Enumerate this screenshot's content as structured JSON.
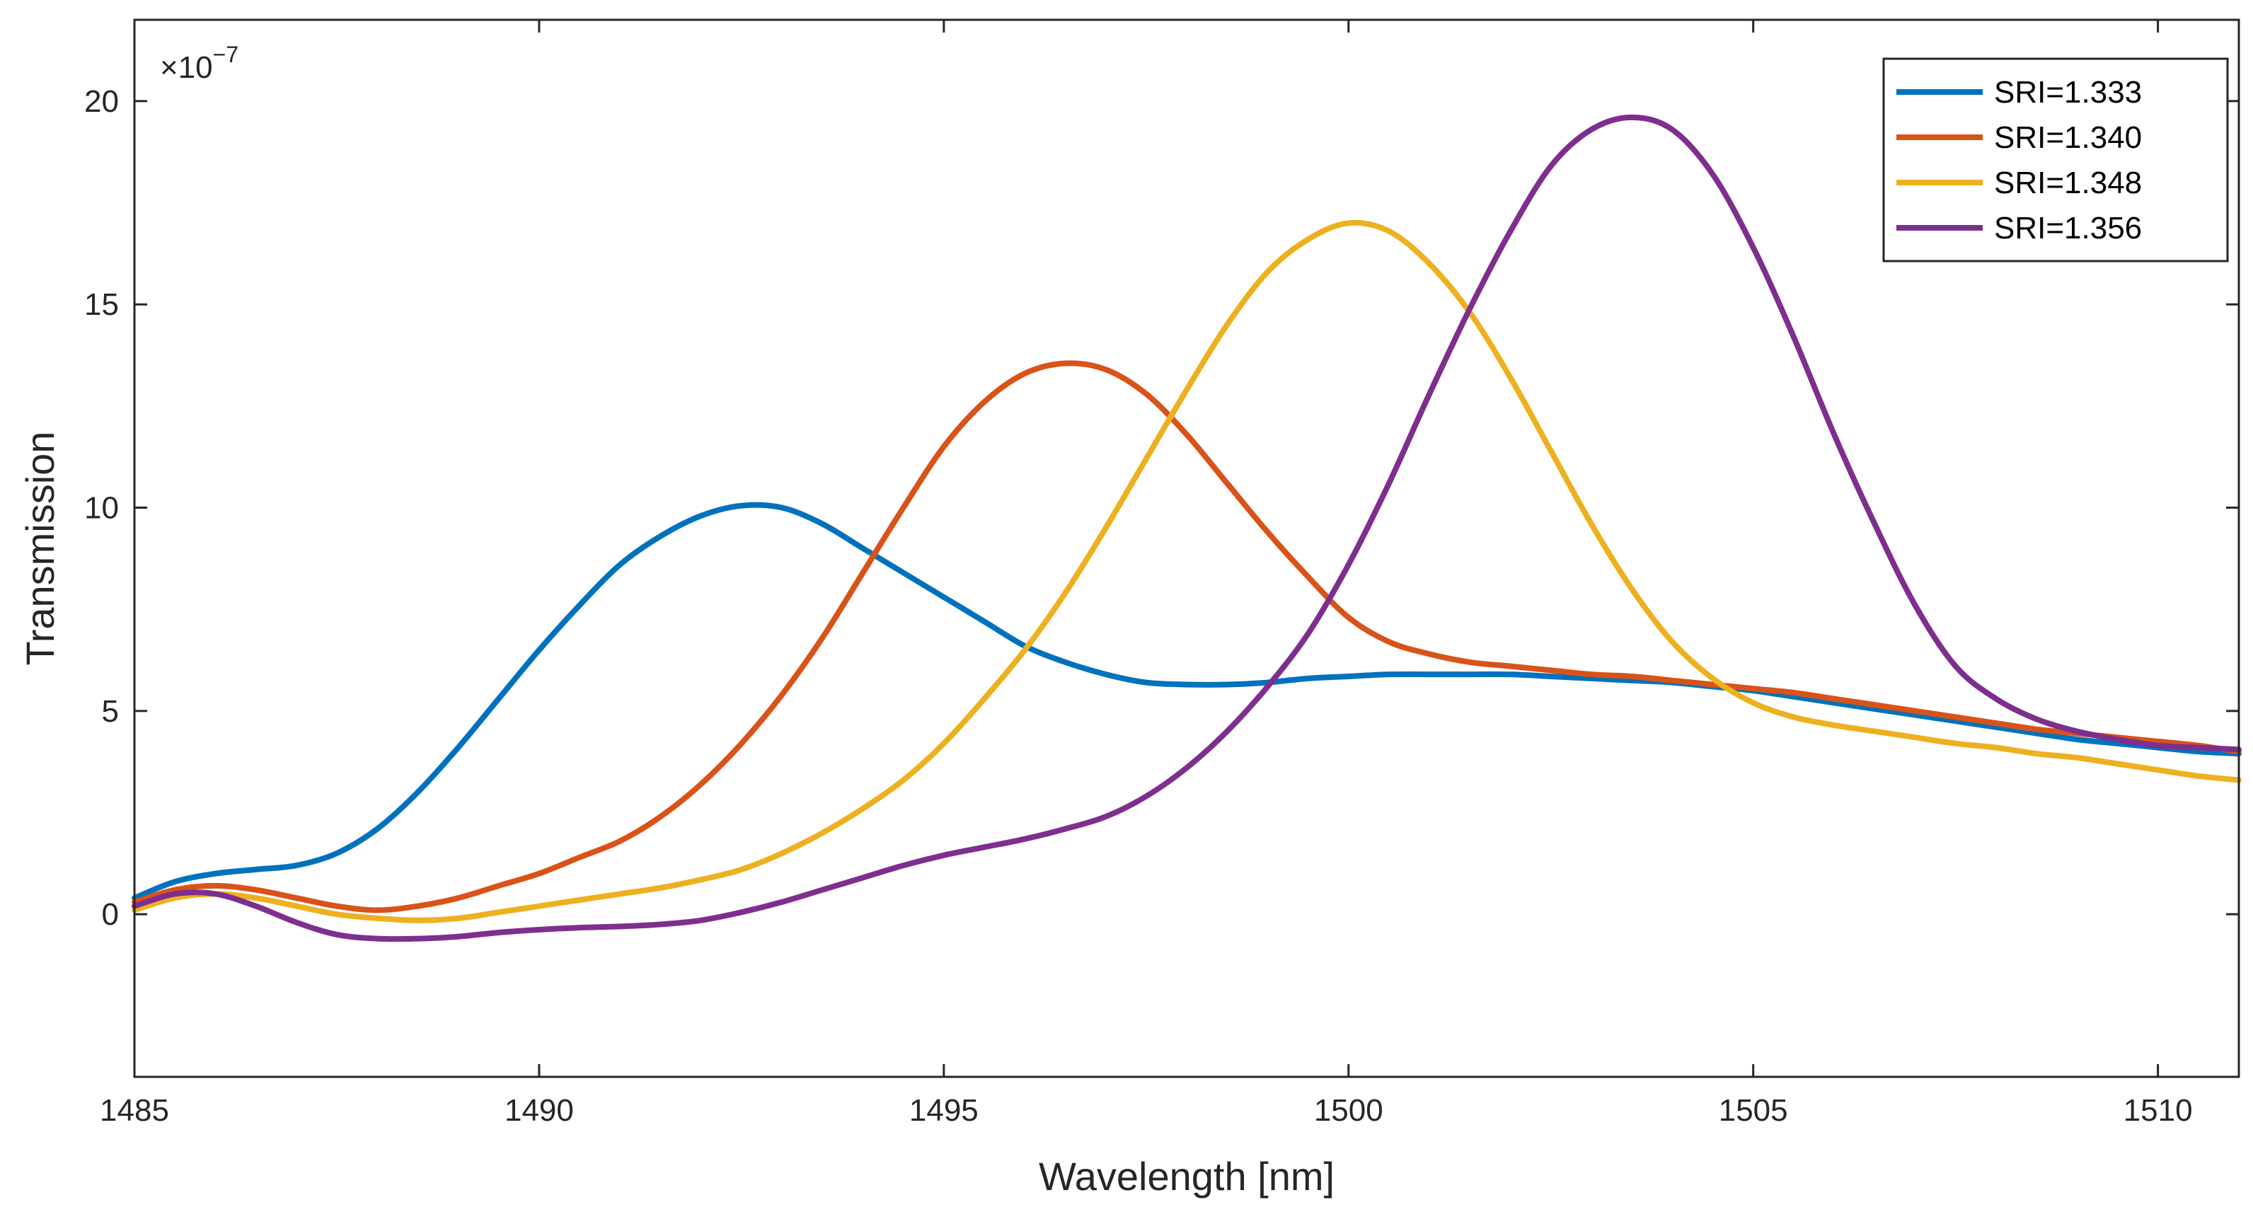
{
  "chart_data": {
    "type": "line",
    "xlabel": "Wavelength [nm]",
    "ylabel": "Transmission",
    "exponent": {
      "base": "×10",
      "power": "−7"
    },
    "xlim": [
      1485,
      1511
    ],
    "ylim": [
      -4,
      22
    ],
    "xticks": [
      1485,
      1490,
      1495,
      1500,
      1505,
      1510
    ],
    "yticks": [
      0,
      5,
      10,
      15,
      20
    ],
    "legend_position": "top-right",
    "colors": {
      "axis": "#262626",
      "background": "#ffffff"
    },
    "series": [
      {
        "name": "SRI=1.333",
        "color": "#0072BD",
        "x": [
          1485,
          1485.5,
          1486,
          1486.5,
          1487,
          1487.5,
          1488,
          1488.5,
          1489,
          1489.5,
          1490,
          1490.5,
          1491,
          1491.5,
          1492,
          1492.5,
          1493,
          1493.5,
          1494,
          1494.5,
          1495,
          1495.5,
          1496,
          1496.5,
          1497,
          1497.5,
          1498,
          1498.5,
          1499,
          1499.5,
          1500,
          1500.5,
          1501,
          1501.5,
          1502,
          1502.5,
          1503,
          1503.5,
          1504,
          1504.5,
          1505,
          1505.5,
          1506,
          1506.5,
          1507,
          1507.5,
          1508,
          1508.5,
          1509,
          1509.5,
          1510,
          1510.5,
          1511
        ],
        "y": [
          0.4,
          0.8,
          1.0,
          1.1,
          1.2,
          1.5,
          2.1,
          3.0,
          4.1,
          5.3,
          6.5,
          7.6,
          8.6,
          9.3,
          9.8,
          10.05,
          10.0,
          9.6,
          9.0,
          8.4,
          7.8,
          7.2,
          6.6,
          6.2,
          5.9,
          5.7,
          5.65,
          5.65,
          5.7,
          5.8,
          5.85,
          5.9,
          5.9,
          5.9,
          5.9,
          5.85,
          5.8,
          5.75,
          5.7,
          5.6,
          5.5,
          5.35,
          5.2,
          5.05,
          4.9,
          4.75,
          4.6,
          4.45,
          4.3,
          4.2,
          4.1,
          4.0,
          3.95
        ]
      },
      {
        "name": "SRI=1.340",
        "color": "#D95319",
        "x": [
          1485,
          1485.5,
          1486,
          1486.5,
          1487,
          1487.5,
          1488,
          1488.5,
          1489,
          1489.5,
          1490,
          1490.5,
          1491,
          1491.5,
          1492,
          1492.5,
          1493,
          1493.5,
          1494,
          1494.5,
          1495,
          1495.5,
          1496,
          1496.5,
          1497,
          1497.5,
          1498,
          1498.5,
          1499,
          1499.5,
          1500,
          1500.5,
          1501,
          1501.5,
          1502,
          1502.5,
          1503,
          1503.5,
          1504,
          1504.5,
          1505,
          1505.5,
          1506,
          1506.5,
          1507,
          1507.5,
          1508,
          1508.5,
          1509,
          1509.5,
          1510,
          1510.5,
          1511
        ],
        "y": [
          0.3,
          0.6,
          0.7,
          0.6,
          0.4,
          0.2,
          0.1,
          0.2,
          0.4,
          0.7,
          1.0,
          1.4,
          1.8,
          2.4,
          3.2,
          4.2,
          5.4,
          6.8,
          8.4,
          10.0,
          11.5,
          12.6,
          13.3,
          13.55,
          13.4,
          12.8,
          11.8,
          10.6,
          9.4,
          8.3,
          7.3,
          6.7,
          6.4,
          6.2,
          6.1,
          6.0,
          5.9,
          5.85,
          5.75,
          5.65,
          5.55,
          5.45,
          5.3,
          5.15,
          5.0,
          4.85,
          4.7,
          4.55,
          4.45,
          4.35,
          4.25,
          4.15,
          4.0
        ]
      },
      {
        "name": "SRI=1.348",
        "color": "#EDB120",
        "x": [
          1485,
          1485.5,
          1486,
          1486.5,
          1487,
          1487.5,
          1488,
          1488.5,
          1489,
          1489.5,
          1490,
          1490.5,
          1491,
          1491.5,
          1492,
          1492.5,
          1493,
          1493.5,
          1494,
          1494.5,
          1495,
          1495.5,
          1496,
          1496.5,
          1497,
          1497.5,
          1498,
          1498.5,
          1499,
          1499.5,
          1500,
          1500.5,
          1501,
          1501.5,
          1502,
          1502.5,
          1503,
          1503.5,
          1504,
          1504.5,
          1505,
          1505.5,
          1506,
          1506.5,
          1507,
          1507.5,
          1508,
          1508.5,
          1509,
          1509.5,
          1510,
          1510.5,
          1511
        ],
        "y": [
          0.1,
          0.4,
          0.5,
          0.4,
          0.2,
          0.0,
          -0.1,
          -0.15,
          -0.1,
          0.05,
          0.2,
          0.35,
          0.5,
          0.65,
          0.85,
          1.1,
          1.5,
          2.0,
          2.6,
          3.3,
          4.2,
          5.3,
          6.5,
          7.9,
          9.5,
          11.2,
          12.9,
          14.5,
          15.8,
          16.6,
          17.0,
          16.8,
          16.0,
          14.8,
          13.2,
          11.4,
          9.6,
          8.0,
          6.7,
          5.8,
          5.2,
          4.85,
          4.65,
          4.5,
          4.35,
          4.2,
          4.1,
          3.95,
          3.85,
          3.7,
          3.55,
          3.4,
          3.3
        ]
      },
      {
        "name": "SRI=1.356",
        "color": "#7E2F8E",
        "x": [
          1485,
          1485.5,
          1486,
          1486.5,
          1487,
          1487.5,
          1488,
          1488.5,
          1489,
          1489.5,
          1490,
          1490.5,
          1491,
          1491.5,
          1492,
          1492.5,
          1493,
          1493.5,
          1494,
          1494.5,
          1495,
          1495.5,
          1496,
          1496.5,
          1497,
          1497.5,
          1498,
          1498.5,
          1499,
          1499.5,
          1500,
          1500.5,
          1501,
          1501.5,
          1502,
          1502.5,
          1503,
          1503.5,
          1504,
          1504.5,
          1505,
          1505.5,
          1506,
          1506.5,
          1507,
          1507.5,
          1508,
          1508.5,
          1509,
          1509.5,
          1510,
          1510.5,
          1511
        ],
        "y": [
          0.2,
          0.5,
          0.5,
          0.2,
          -0.2,
          -0.5,
          -0.6,
          -0.6,
          -0.55,
          -0.45,
          -0.38,
          -0.33,
          -0.3,
          -0.25,
          -0.15,
          0.05,
          0.3,
          0.6,
          0.9,
          1.2,
          1.45,
          1.65,
          1.85,
          2.1,
          2.4,
          2.9,
          3.6,
          4.5,
          5.6,
          6.9,
          8.6,
          10.6,
          12.8,
          14.9,
          16.8,
          18.4,
          19.3,
          19.6,
          19.3,
          18.2,
          16.4,
          14.2,
          11.8,
          9.6,
          7.6,
          6.1,
          5.3,
          4.8,
          4.5,
          4.3,
          4.15,
          4.1,
          4.05
        ]
      }
    ]
  }
}
